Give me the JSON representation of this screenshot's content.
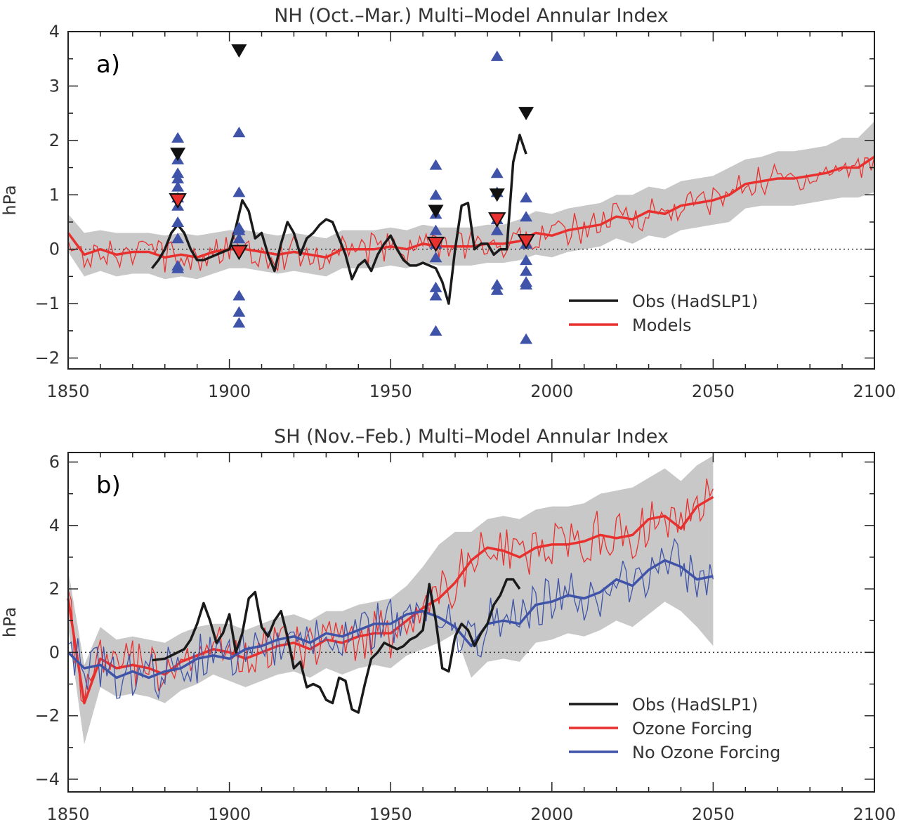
{
  "chart_data": [
    {
      "type": "line",
      "title": "NH (Oct.–Mar.) Multi–Model Annular Index",
      "panel_label": "a)",
      "ylabel": "hPa",
      "xlabel": "",
      "xlim": [
        1850,
        2100
      ],
      "ylim": [
        -2.2,
        4.0
      ],
      "xticks": [
        1850,
        1900,
        1950,
        2000,
        2050,
        2100
      ],
      "yticks": [
        -2,
        -1,
        0,
        1,
        2,
        3,
        4
      ],
      "zero_line": "dotted",
      "legend_position": "bottom-right",
      "legend": [
        {
          "label": "Obs (HadSLP1)",
          "color": "#1a1a1a"
        },
        {
          "label": "Models",
          "color": "#e8312f"
        }
      ],
      "series": [
        {
          "name": "Obs (HadSLP1)",
          "color": "#1a1a1a",
          "x": [
            1876,
            1878,
            1880,
            1882,
            1884,
            1886,
            1888,
            1890,
            1892,
            1894,
            1896,
            1898,
            1900,
            1902,
            1904,
            1906,
            1908,
            1910,
            1912,
            1914,
            1916,
            1918,
            1920,
            1922,
            1924,
            1926,
            1928,
            1930,
            1932,
            1934,
            1936,
            1938,
            1940,
            1942,
            1944,
            1946,
            1948,
            1950,
            1952,
            1954,
            1956,
            1958,
            1960,
            1962,
            1964,
            1966,
            1968,
            1970,
            1972,
            1974,
            1976,
            1978,
            1980,
            1982,
            1984,
            1986,
            1988,
            1990,
            1992
          ],
          "y": [
            -0.35,
            -0.2,
            0.0,
            0.3,
            0.45,
            0.3,
            0.0,
            -0.2,
            -0.2,
            -0.15,
            -0.1,
            -0.05,
            0.0,
            0.4,
            0.9,
            0.7,
            0.2,
            0.3,
            -0.1,
            -0.4,
            0.1,
            0.5,
            0.3,
            -0.1,
            0.2,
            0.3,
            0.45,
            0.55,
            0.5,
            0.2,
            -0.1,
            -0.55,
            -0.3,
            -0.2,
            -0.4,
            -0.1,
            0.1,
            0.25,
            0.0,
            -0.2,
            -0.3,
            -0.3,
            -0.25,
            -0.3,
            -0.35,
            -0.6,
            -1.0,
            0.0,
            0.8,
            0.85,
            0.0,
            0.1,
            0.1,
            -0.1,
            0.0,
            0.0,
            1.6,
            2.1,
            1.75
          ]
        },
        {
          "name": "Models",
          "color": "#e8312f",
          "x_start": 1850,
          "x_step": 5,
          "y": [
            0.3,
            -0.1,
            0.0,
            -0.1,
            -0.05,
            -0.05,
            -0.15,
            -0.1,
            -0.15,
            -0.05,
            0.0,
            0.0,
            -0.05,
            -0.1,
            -0.05,
            -0.1,
            -0.15,
            0.0,
            0.0,
            0.0,
            0.05,
            0.0,
            0.1,
            0.05,
            0.05,
            0.05,
            0.1,
            0.1,
            0.15,
            0.3,
            0.25,
            0.35,
            0.4,
            0.45,
            0.6,
            0.55,
            0.7,
            0.65,
            0.8,
            0.85,
            0.9,
            1.0,
            1.2,
            1.25,
            1.3,
            1.3,
            1.35,
            1.4,
            1.5,
            1.5,
            1.7
          ]
        },
        {
          "name": "Models band",
          "color": "#c8c8c8",
          "x_start": 1850,
          "x_step": 5,
          "upper": [
            0.65,
            0.3,
            0.35,
            0.3,
            0.3,
            0.3,
            0.25,
            0.3,
            0.25,
            0.3,
            0.35,
            0.35,
            0.3,
            0.25,
            0.3,
            0.25,
            0.2,
            0.35,
            0.35,
            0.35,
            0.4,
            0.35,
            0.45,
            0.4,
            0.4,
            0.4,
            0.45,
            0.45,
            0.55,
            0.7,
            0.65,
            0.75,
            0.8,
            0.85,
            1.0,
            1.0,
            1.15,
            1.1,
            1.25,
            1.3,
            1.35,
            1.5,
            1.65,
            1.7,
            1.8,
            1.8,
            1.85,
            1.9,
            2.05,
            2.05,
            2.35
          ],
          "lower": [
            -0.05,
            -0.5,
            -0.4,
            -0.5,
            -0.45,
            -0.45,
            -0.55,
            -0.5,
            -0.55,
            -0.45,
            -0.35,
            -0.35,
            -0.4,
            -0.45,
            -0.4,
            -0.45,
            -0.5,
            -0.35,
            -0.35,
            -0.35,
            -0.3,
            -0.35,
            -0.25,
            -0.3,
            -0.3,
            -0.3,
            -0.25,
            -0.25,
            -0.2,
            -0.1,
            -0.15,
            -0.05,
            0.0,
            0.05,
            0.2,
            0.1,
            0.25,
            0.2,
            0.35,
            0.4,
            0.45,
            0.5,
            0.75,
            0.8,
            0.8,
            0.8,
            0.85,
            0.9,
            0.95,
            0.95,
            1.05
          ]
        }
      ],
      "markers": [
        {
          "x": 1884,
          "blue_triangles": [
            2.05,
            1.65,
            1.4,
            1.3,
            1.15,
            0.95,
            0.8,
            0.5,
            0.2,
            -0.3,
            -0.35
          ],
          "obs": 1.75,
          "model": 0.9
        },
        {
          "x": 1903,
          "blue_triangles": [
            2.15,
            1.05,
            0.4,
            0.35,
            0.2,
            -0.85,
            -1.15,
            -1.35
          ],
          "obs": 3.65,
          "model": -0.05
        },
        {
          "x": 1964,
          "blue_triangles": [
            1.55,
            1.0,
            0.65,
            0.35,
            0.1,
            -0.15,
            -0.7,
            -0.85,
            -1.5
          ],
          "obs": 0.7,
          "model": 0.1
        },
        {
          "x": 1983,
          "blue_triangles": [
            3.55,
            1.4,
            1.05,
            0.55,
            0.35,
            -0.65,
            -0.75
          ],
          "obs": 1.0,
          "model": 0.55
        },
        {
          "x": 1992,
          "blue_triangles": [
            0.95,
            0.6,
            0.1,
            -0.2,
            -0.4,
            -0.6,
            -0.65,
            -1.65
          ],
          "obs": 2.5,
          "model": 0.15
        }
      ]
    },
    {
      "type": "line",
      "title": "SH (Nov.–Feb.) Multi–Model Annular Index",
      "panel_label": "b)",
      "ylabel": "hPa",
      "xlabel": "",
      "xlim": [
        1850,
        2100
      ],
      "ylim": [
        -4.4,
        6.3
      ],
      "xticks": [
        1850,
        1900,
        1950,
        2000,
        2050,
        2100
      ],
      "yticks": [
        -4,
        -2,
        0,
        2,
        4,
        6
      ],
      "zero_line": "dotted",
      "legend_position": "bottom-right",
      "legend": [
        {
          "label": "Obs (HadSLP1)",
          "color": "#1a1a1a"
        },
        {
          "label": "Ozone Forcing",
          "color": "#e8312f"
        },
        {
          "label": "No Ozone Forcing",
          "color": "#3f54a8"
        }
      ],
      "series": [
        {
          "name": "Obs (HadSLP1)",
          "color": "#1a1a1a",
          "x": [
            1876,
            1880,
            1884,
            1886,
            1888,
            1890,
            1892,
            1894,
            1896,
            1898,
            1900,
            1902,
            1904,
            1906,
            1908,
            1910,
            1912,
            1914,
            1916,
            1918,
            1920,
            1922,
            1924,
            1926,
            1928,
            1930,
            1932,
            1934,
            1936,
            1938,
            1940,
            1942,
            1944,
            1946,
            1948,
            1950,
            1952,
            1954,
            1956,
            1958,
            1960,
            1962,
            1964,
            1966,
            1968,
            1970,
            1972,
            1974,
            1976,
            1978,
            1980,
            1982,
            1984,
            1986,
            1988,
            1990
          ],
          "y": [
            -0.25,
            -0.2,
            0.0,
            0.1,
            0.4,
            0.9,
            1.55,
            1.0,
            0.3,
            0.6,
            1.2,
            0.0,
            0.6,
            1.7,
            1.9,
            0.8,
            0.5,
            1.0,
            1.3,
            0.5,
            -0.5,
            -0.3,
            -1.1,
            -1.0,
            -1.1,
            -1.5,
            -1.6,
            -0.8,
            -0.9,
            -1.8,
            -1.9,
            -1.0,
            -0.2,
            0.0,
            0.3,
            0.2,
            0.1,
            0.2,
            0.4,
            0.5,
            0.7,
            2.15,
            1.0,
            -0.5,
            -0.6,
            0.5,
            0.9,
            0.7,
            0.2,
            0.6,
            0.9,
            1.5,
            1.8,
            2.3,
            2.3,
            2.0
          ]
        },
        {
          "name": "Ozone Forcing",
          "color": "#e8312f",
          "x_start": 1850,
          "x_step": 5,
          "y": [
            1.7,
            -1.6,
            -0.2,
            -0.5,
            -0.4,
            -0.5,
            -0.7,
            -0.3,
            -0.1,
            0.1,
            0.0,
            -0.2,
            0.0,
            0.2,
            0.3,
            0.1,
            0.4,
            0.3,
            0.5,
            0.6,
            0.6,
            1.0,
            1.4,
            1.7,
            2.2,
            2.9,
            3.3,
            3.2,
            3.0,
            3.3,
            3.4,
            3.4,
            3.5,
            3.7,
            3.6,
            3.7,
            4.2,
            4.3,
            3.9,
            4.6,
            4.9
          ]
        },
        {
          "name": "No Ozone Forcing",
          "color": "#3f54a8",
          "x_start": 1850,
          "x_step": 5,
          "y": [
            0.0,
            -0.5,
            -0.4,
            -0.8,
            -0.6,
            -0.8,
            -0.6,
            -0.5,
            -0.2,
            -0.1,
            -0.2,
            0.1,
            0.2,
            0.4,
            0.5,
            0.3,
            0.6,
            0.5,
            0.7,
            0.9,
            0.9,
            1.2,
            1.3,
            1.1,
            0.8,
            0.2,
            0.9,
            1.0,
            0.9,
            1.5,
            1.6,
            1.8,
            1.7,
            1.9,
            2.3,
            2.1,
            2.6,
            2.9,
            2.7,
            2.3,
            2.4
          ]
        },
        {
          "name": "Ozone band",
          "color": "#c8c8c8",
          "x_start": 1850,
          "x_step": 5,
          "upper": [
            2.6,
            -0.4,
            0.8,
            0.4,
            0.5,
            0.4,
            0.3,
            0.6,
            0.8,
            0.9,
            0.9,
            0.7,
            0.9,
            1.1,
            1.2,
            1.0,
            1.3,
            1.3,
            1.5,
            1.6,
            1.7,
            2.1,
            2.7,
            3.4,
            3.8,
            3.8,
            4.2,
            4.3,
            4.2,
            4.5,
            4.6,
            4.6,
            4.7,
            5.0,
            5.1,
            5.2,
            5.5,
            5.8,
            5.4,
            5.9,
            6.2
          ],
          "lower": [
            0.8,
            -2.9,
            -1.1,
            -1.4,
            -1.3,
            -1.4,
            -1.6,
            -1.2,
            -1.0,
            -0.7,
            -0.9,
            -1.1,
            -0.9,
            -0.7,
            -0.6,
            -0.8,
            -0.5,
            -0.7,
            -0.5,
            -0.4,
            -0.5,
            -0.1,
            0.1,
            0.3,
            0.6,
            -0.8,
            -0.3,
            -0.2,
            -0.3,
            0.3,
            0.4,
            0.6,
            0.5,
            0.7,
            1.0,
            0.8,
            1.2,
            1.6,
            1.3,
            0.8,
            0.2
          ]
        }
      ]
    }
  ]
}
